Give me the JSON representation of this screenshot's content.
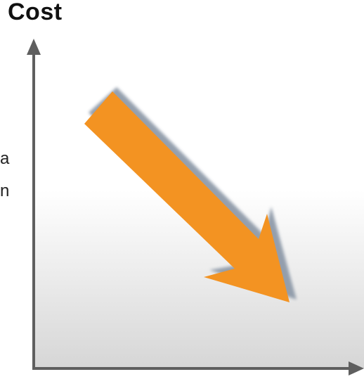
{
  "title": "Cost",
  "side_text": [
    "a",
    "n"
  ],
  "colors": {
    "arrow": "#f39322",
    "arrow_shadow": "#8a96a6",
    "axis": "#5f5f5f"
  },
  "icons": {
    "trend_arrow": "down-right-arrow-icon"
  }
}
